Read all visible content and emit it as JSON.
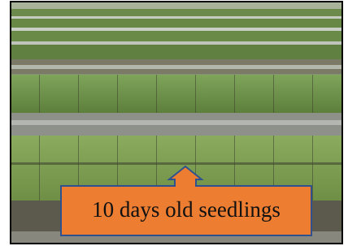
{
  "annotation": {
    "label": "10 days old seedlings"
  }
}
